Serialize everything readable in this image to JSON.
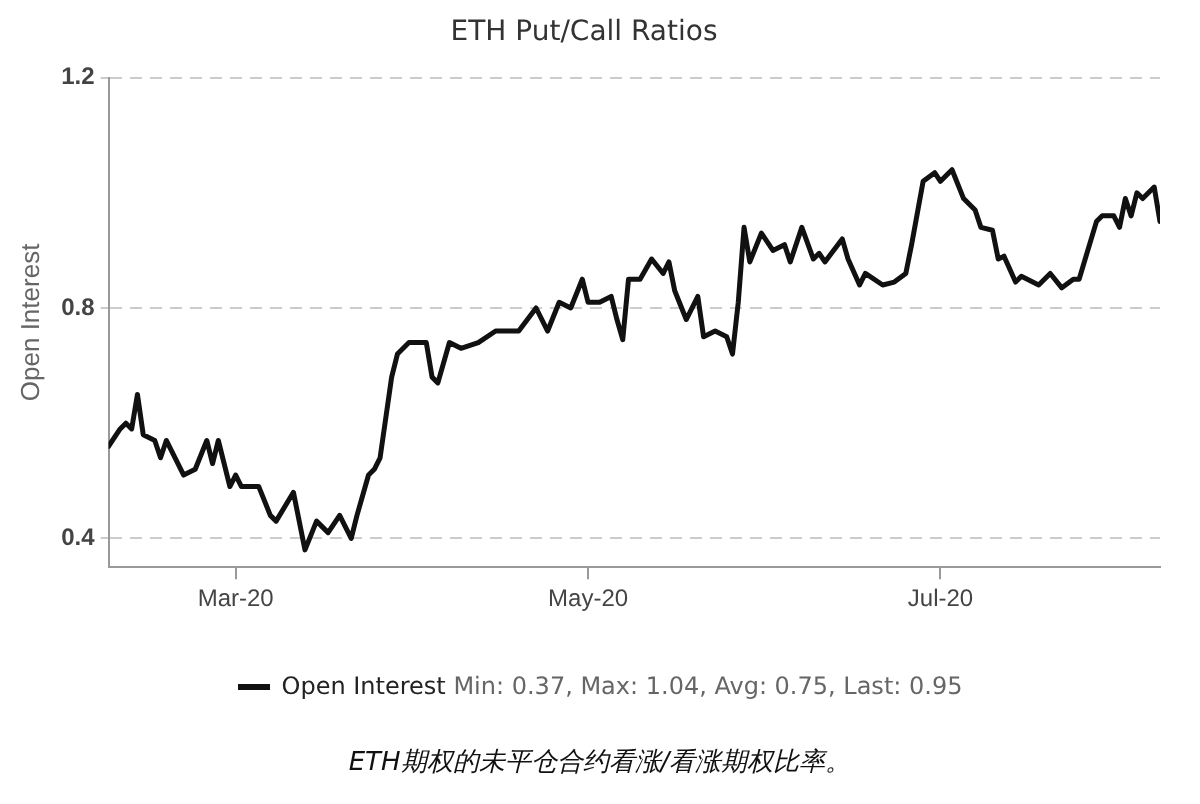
{
  "chart_data": {
    "type": "line",
    "title": "ETH Put/Call Ratios",
    "ylabel": "Open Interest",
    "legend": "bottom",
    "grid": "y",
    "marker": "none",
    "line_style": "solid",
    "annotations": [
      "Min: 0.37, Max: 1.04, Avg: 0.75, Last: 0.95",
      "ETH期权的未平仓合约看涨/看涨期权比率。"
    ],
    "xlim": [
      "2020-02-08",
      "2020-08-08"
    ],
    "xticks": [
      {
        "value": "2020-03-01",
        "label": "Mar-20"
      },
      {
        "value": "2020-05-01",
        "label": "May-20"
      },
      {
        "value": "2020-07-01",
        "label": "Jul-20"
      }
    ],
    "ylim": [
      0.35,
      1.2
    ],
    "yticks": [
      0.4,
      0.8,
      1.2
    ],
    "x": [
      "2020-02-08",
      "2020-02-10",
      "2020-02-11",
      "2020-02-12",
      "2020-02-13",
      "2020-02-14",
      "2020-02-16",
      "2020-02-17",
      "2020-02-18",
      "2020-02-21",
      "2020-02-23",
      "2020-02-25",
      "2020-02-26",
      "2020-02-27",
      "2020-02-29",
      "2020-03-01",
      "2020-03-02",
      "2020-03-05",
      "2020-03-07",
      "2020-03-08",
      "2020-03-11",
      "2020-03-13",
      "2020-03-15",
      "2020-03-17",
      "2020-03-19",
      "2020-03-21",
      "2020-03-22",
      "2020-03-24",
      "2020-03-25",
      "2020-03-26",
      "2020-03-28",
      "2020-03-29",
      "2020-03-31",
      "2020-04-03",
      "2020-04-04",
      "2020-04-05",
      "2020-04-07",
      "2020-04-09",
      "2020-04-12",
      "2020-04-15",
      "2020-04-19",
      "2020-04-22",
      "2020-04-24",
      "2020-04-26",
      "2020-04-28",
      "2020-04-30",
      "2020-05-01",
      "2020-05-03",
      "2020-05-05",
      "2020-05-06",
      "2020-05-07",
      "2020-05-08",
      "2020-05-10",
      "2020-05-12",
      "2020-05-14",
      "2020-05-15",
      "2020-05-16",
      "2020-05-18",
      "2020-05-20",
      "2020-05-21",
      "2020-05-23",
      "2020-05-25",
      "2020-05-26",
      "2020-05-27",
      "2020-05-28",
      "2020-05-29",
      "2020-05-31",
      "2020-06-02",
      "2020-06-04",
      "2020-06-05",
      "2020-06-07",
      "2020-06-09",
      "2020-06-10",
      "2020-06-11",
      "2020-06-14",
      "2020-06-15",
      "2020-06-17",
      "2020-06-18",
      "2020-06-21",
      "2020-06-23",
      "2020-06-25",
      "2020-06-26",
      "2020-06-28",
      "2020-06-30",
      "2020-07-01",
      "2020-07-03",
      "2020-07-05",
      "2020-07-07",
      "2020-07-08",
      "2020-07-10",
      "2020-07-11",
      "2020-07-12",
      "2020-07-14",
      "2020-07-15",
      "2020-07-18",
      "2020-07-20",
      "2020-07-22",
      "2020-07-24",
      "2020-07-25",
      "2020-07-28",
      "2020-07-29",
      "2020-07-31",
      "2020-08-01",
      "2020-08-02",
      "2020-08-03",
      "2020-08-04",
      "2020-08-05",
      "2020-08-07",
      "2020-08-08"
    ],
    "series": [
      {
        "name": "Open Interest",
        "color": "#111111",
        "values": [
          0.56,
          0.59,
          0.6,
          0.59,
          0.65,
          0.58,
          0.57,
          0.54,
          0.57,
          0.51,
          0.52,
          0.57,
          0.53,
          0.57,
          0.49,
          0.51,
          0.49,
          0.49,
          0.44,
          0.43,
          0.48,
          0.38,
          0.43,
          0.41,
          0.44,
          0.4,
          0.44,
          0.51,
          0.52,
          0.54,
          0.68,
          0.72,
          0.74,
          0.74,
          0.68,
          0.67,
          0.74,
          0.73,
          0.74,
          0.76,
          0.76,
          0.8,
          0.76,
          0.81,
          0.8,
          0.85,
          0.81,
          0.81,
          0.82,
          0.78,
          0.745,
          0.85,
          0.85,
          0.885,
          0.86,
          0.88,
          0.83,
          0.78,
          0.82,
          0.75,
          0.76,
          0.75,
          0.72,
          0.81,
          0.94,
          0.88,
          0.93,
          0.9,
          0.91,
          0.88,
          0.94,
          0.885,
          0.895,
          0.88,
          0.92,
          0.885,
          0.84,
          0.86,
          0.84,
          0.845,
          0.86,
          0.91,
          1.02,
          1.035,
          1.02,
          1.04,
          0.99,
          0.97,
          0.94,
          0.935,
          0.885,
          0.89,
          0.845,
          0.855,
          0.84,
          0.86,
          0.835,
          0.85,
          0.85,
          0.95,
          0.96,
          0.96,
          0.94,
          0.99,
          0.96,
          1.0,
          0.99,
          1.01,
          0.95
        ]
      }
    ]
  }
}
